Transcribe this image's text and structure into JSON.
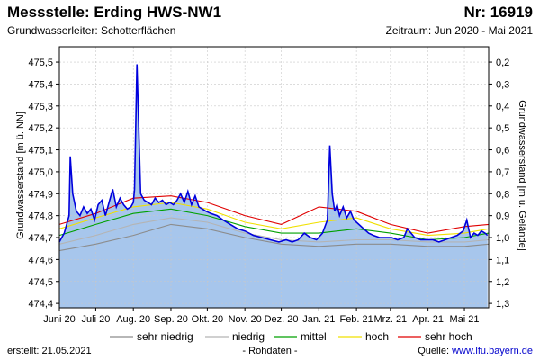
{
  "header": {
    "title": "Messstelle: Erding HWS-NW1",
    "nr": "Nr: 16919",
    "aquifer": "Grundwasserleiter:   Schotterflächen",
    "period": "Zeitraum: Jun 2020 - Mai 2021"
  },
  "footer": {
    "created": "erstellt:  21.05.2021",
    "rawdata": "- Rohdaten -",
    "source_label": "Quelle: ",
    "source_link": "www.lfu.bayern.de"
  },
  "colors": {
    "area_fill": "#a7c6ec",
    "measured": "#0000dd",
    "sehr_niedrig": "#8c8c8c",
    "niedrig": "#b4b4b4",
    "mittel": "#00a000",
    "hoch": "#f0e000",
    "sehr_hoch": "#e00000"
  },
  "chart_data": {
    "type": "area",
    "ylabel": "Grundwasserstand [m ü. NN]",
    "ylabel_right": "Grundwasserstand [m u. Gelände]",
    "ylim": [
      474.38,
      475.57
    ],
    "yticks": [
      "474,4",
      "474,5",
      "474,6",
      "474,7",
      "474,8",
      "474,9",
      "475,0",
      "475,1",
      "475,2",
      "475,3",
      "475,4",
      "475,5"
    ],
    "yticks_values": [
      474.4,
      474.5,
      474.6,
      474.7,
      474.8,
      474.9,
      475.0,
      475.1,
      475.2,
      475.3,
      475.4,
      475.5
    ],
    "yticks_right": [
      "0,2",
      "0,3",
      "0,4",
      "0,5",
      "0,6",
      "0,7",
      "0,8",
      "0,9",
      "1,0",
      "1,1",
      "1,2",
      "1,3"
    ],
    "yticks_right_values": [
      475.5,
      475.4,
      475.3,
      475.2,
      475.1,
      475.0,
      474.9,
      474.8,
      474.7,
      474.6,
      474.5,
      474.4
    ],
    "xlim": [
      "2020-06-01",
      "2021-05-21"
    ],
    "xticks": [
      "Juni 20",
      "Juli 20",
      "Aug. 20",
      "Sep. 20",
      "Okt. 20",
      "Nov. 20",
      "Dez. 20",
      "Jan. 21",
      "Feb. 21",
      "Mrz. 21",
      "Apr. 21",
      "Mai 21"
    ],
    "xticks_dates": [
      "2020-06-01",
      "2020-07-01",
      "2020-08-01",
      "2020-09-01",
      "2020-10-01",
      "2020-11-01",
      "2020-12-01",
      "2021-01-01",
      "2021-02-01",
      "2021-03-01",
      "2021-04-01",
      "2021-05-01"
    ],
    "grid": true,
    "legend_position": "bottom",
    "series": [
      {
        "name": "sehr niedrig",
        "key": "sehr_niedrig",
        "dates": [
          "2020-06-01",
          "2020-07-01",
          "2020-08-01",
          "2020-09-01",
          "2020-10-01",
          "2020-11-01",
          "2020-12-01",
          "2021-01-01",
          "2021-02-01",
          "2021-03-01",
          "2021-04-01",
          "2021-05-01",
          "2021-05-21"
        ],
        "values": [
          474.64,
          474.67,
          474.71,
          474.76,
          474.74,
          474.7,
          474.67,
          474.66,
          474.67,
          474.67,
          474.66,
          474.66,
          474.67
        ]
      },
      {
        "name": "niedrig",
        "key": "niedrig",
        "dates": [
          "2020-06-01",
          "2020-07-01",
          "2020-08-01",
          "2020-09-01",
          "2020-10-01",
          "2020-11-01",
          "2020-12-01",
          "2021-01-01",
          "2021-02-01",
          "2021-03-01",
          "2021-04-01",
          "2021-05-01",
          "2021-05-21"
        ],
        "values": [
          474.67,
          474.71,
          474.76,
          474.79,
          474.77,
          474.72,
          474.69,
          474.68,
          474.69,
          474.69,
          474.68,
          474.68,
          474.69
        ]
      },
      {
        "name": "mittel",
        "key": "mittel",
        "dates": [
          "2020-06-01",
          "2020-07-01",
          "2020-08-01",
          "2020-09-01",
          "2020-10-01",
          "2020-11-01",
          "2020-12-01",
          "2021-01-01",
          "2021-02-01",
          "2021-03-01",
          "2021-04-01",
          "2021-05-01",
          "2021-05-21"
        ],
        "values": [
          474.71,
          474.76,
          474.81,
          474.83,
          474.8,
          474.75,
          474.72,
          474.72,
          474.74,
          474.72,
          474.69,
          474.7,
          474.72
        ]
      },
      {
        "name": "hoch",
        "key": "hoch",
        "dates": [
          "2020-06-01",
          "2020-07-01",
          "2020-08-01",
          "2020-09-01",
          "2020-10-01",
          "2020-11-01",
          "2020-12-01",
          "2021-01-01",
          "2021-02-01",
          "2021-03-01",
          "2021-04-01",
          "2021-05-01",
          "2021-05-21"
        ],
        "values": [
          474.74,
          474.79,
          474.84,
          474.86,
          474.83,
          474.77,
          474.74,
          474.77,
          474.79,
          474.74,
          474.71,
          474.72,
          474.74
        ]
      },
      {
        "name": "sehr hoch",
        "key": "sehr_hoch",
        "dates": [
          "2020-06-01",
          "2020-07-01",
          "2020-08-01",
          "2020-09-01",
          "2020-10-01",
          "2020-11-01",
          "2020-12-01",
          "2021-01-01",
          "2021-02-01",
          "2021-03-01",
          "2021-04-01",
          "2021-05-01",
          "2021-05-21"
        ],
        "values": [
          474.76,
          474.81,
          474.88,
          474.89,
          474.86,
          474.8,
          474.76,
          474.84,
          474.82,
          474.76,
          474.72,
          474.75,
          474.76
        ]
      },
      {
        "name": "Rohdaten",
        "key": "measured",
        "dates": [
          "2020-06-01",
          "2020-06-05",
          "2020-06-09",
          "2020-06-10",
          "2020-06-12",
          "2020-06-15",
          "2020-06-18",
          "2020-06-21",
          "2020-06-24",
          "2020-06-27",
          "2020-06-30",
          "2020-07-03",
          "2020-07-06",
          "2020-07-09",
          "2020-07-12",
          "2020-07-15",
          "2020-07-18",
          "2020-07-21",
          "2020-07-24",
          "2020-07-27",
          "2020-07-30",
          "2020-08-01",
          "2020-08-02",
          "2020-08-04",
          "2020-08-07",
          "2020-08-10",
          "2020-08-13",
          "2020-08-16",
          "2020-08-19",
          "2020-08-22",
          "2020-08-25",
          "2020-08-28",
          "2020-08-31",
          "2020-09-03",
          "2020-09-06",
          "2020-09-09",
          "2020-09-12",
          "2020-09-15",
          "2020-09-18",
          "2020-09-21",
          "2020-09-24",
          "2020-09-27",
          "2020-09-30",
          "2020-10-04",
          "2020-10-09",
          "2020-10-14",
          "2020-10-20",
          "2020-10-26",
          "2020-11-01",
          "2020-11-08",
          "2020-11-15",
          "2020-11-22",
          "2020-11-29",
          "2020-12-05",
          "2020-12-10",
          "2020-12-15",
          "2020-12-20",
          "2020-12-25",
          "2020-12-30",
          "2021-01-04",
          "2021-01-08",
          "2021-01-10",
          "2021-01-12",
          "2021-01-14",
          "2021-01-16",
          "2021-01-18",
          "2021-01-21",
          "2021-01-24",
          "2021-01-27",
          "2021-01-30",
          "2021-02-03",
          "2021-02-07",
          "2021-02-11",
          "2021-02-15",
          "2021-02-20",
          "2021-02-25",
          "2021-03-02",
          "2021-03-07",
          "2021-03-12",
          "2021-03-15",
          "2021-03-18",
          "2021-03-21",
          "2021-03-26",
          "2021-03-31",
          "2021-04-05",
          "2021-04-10",
          "2021-04-15",
          "2021-04-20",
          "2021-04-25",
          "2021-04-30",
          "2021-05-03",
          "2021-05-06",
          "2021-05-09",
          "2021-05-12",
          "2021-05-15",
          "2021-05-18",
          "2021-05-20"
        ],
        "values": [
          474.68,
          474.72,
          474.8,
          475.07,
          474.9,
          474.82,
          474.8,
          474.84,
          474.81,
          474.83,
          474.78,
          474.85,
          474.87,
          474.8,
          474.86,
          474.92,
          474.84,
          474.88,
          474.85,
          474.83,
          474.84,
          474.86,
          474.92,
          475.49,
          474.9,
          474.87,
          474.86,
          474.85,
          474.88,
          474.86,
          474.87,
          474.85,
          474.86,
          474.85,
          474.87,
          474.9,
          474.86,
          474.91,
          474.85,
          474.89,
          474.84,
          474.83,
          474.82,
          474.81,
          474.8,
          474.78,
          474.76,
          474.74,
          474.73,
          474.71,
          474.7,
          474.69,
          474.68,
          474.69,
          474.68,
          474.69,
          474.72,
          474.7,
          474.69,
          474.72,
          474.78,
          475.12,
          474.9,
          474.82,
          474.85,
          474.8,
          474.84,
          474.79,
          474.82,
          474.78,
          474.76,
          474.74,
          474.72,
          474.71,
          474.7,
          474.7,
          474.7,
          474.69,
          474.7,
          474.74,
          474.72,
          474.7,
          474.69,
          474.69,
          474.69,
          474.68,
          474.69,
          474.7,
          474.71,
          474.73,
          474.78,
          474.7,
          474.72,
          474.71,
          474.73,
          474.72,
          474.71
        ]
      }
    ]
  }
}
